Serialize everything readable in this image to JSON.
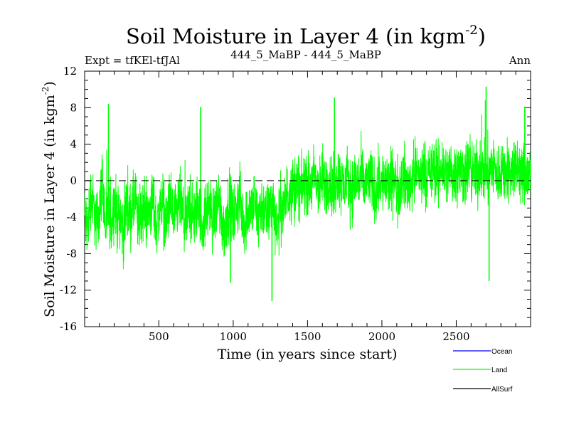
{
  "chart_data": {
    "type": "line",
    "title": "Soil Moisture in Layer 4 (in kgm",
    "title_sup": "-2",
    "title_close": ")",
    "subtitle_left": "Expt = tfKEl-tfJAl",
    "subtitle_center": "444_5_MaBP - 444_5_MaBP",
    "subtitle_right": "Ann",
    "xlabel": "Time (in years since start)",
    "ylabel": "Soil Moisture in Layer 4 (in kgm",
    "ylabel_sup": "-2",
    "ylabel_close": ")",
    "xlim": [
      1,
      3000
    ],
    "ylim": [
      -16,
      12
    ],
    "x_ticks": [
      500,
      1000,
      1500,
      2000,
      2500
    ],
    "x_tick_labels": [
      "500",
      "1000",
      "1500",
      "2000",
      "2500"
    ],
    "y_ticks": [
      -16,
      -12,
      -8,
      -4,
      0,
      4,
      8,
      12
    ],
    "y_tick_labels": [
      "-16",
      "-12",
      "-8",
      "-4",
      "0",
      "4",
      "8",
      "12"
    ],
    "zero_line": true,
    "grid": false,
    "legend_position": "bottom-right",
    "series": [
      {
        "name": "Land",
        "color": "#00ff00",
        "x_start": 1,
        "x_step": 20,
        "values": [
          -3.8,
          -5.4,
          -1.6,
          -2.9,
          -4.8,
          -3.1,
          0.4,
          -5.5,
          -3.2,
          -4.9,
          -2.1,
          -4.2,
          -3.5,
          -6.1,
          -2.4,
          -4.0,
          -3.3,
          -1.9,
          -5.0,
          -3.6,
          -2.8,
          -4.3,
          -3.0,
          -2.2,
          -4.7,
          -3.9,
          -1.5,
          -5.2,
          -3.4,
          -2.6,
          -4.4,
          -3.7,
          -2.0,
          -4.1,
          -5.3,
          -2.7,
          -3.5,
          -4.6,
          -2.3,
          -3.8,
          -5.1,
          -3.0,
          -2.5,
          -4.5,
          -3.2,
          -1.8,
          -4.0,
          -5.6,
          -3.3,
          -2.4,
          -4.2,
          -3.1,
          -1.7,
          -3.9,
          -4.8,
          -2.9,
          -3.6,
          -2.0,
          -4.4,
          -3.0,
          -2.6,
          -4.1,
          -3.4,
          -2.2,
          -3.8,
          -4.9,
          -2.7,
          -3.3,
          -1.4,
          -1.0,
          -0.8,
          -0.3,
          -0.6,
          -1.2,
          0.2,
          -0.4,
          -0.9,
          0.5,
          -0.2,
          -1.1,
          0.3,
          -0.7,
          0.1,
          -0.5,
          -1.3,
          0.6,
          -0.1,
          -0.8,
          0.4,
          -0.6,
          -1.0,
          0.2,
          -0.3,
          0.7,
          -0.9,
          -0.2,
          0.3,
          -0.7,
          -1.4,
          0.5,
          -0.4,
          0.1,
          -0.6,
          -0.1,
          0.4,
          -1.2,
          -0.5,
          0.6,
          -0.2,
          -0.8,
          0.2,
          0.8,
          1.0,
          0.5,
          1.3,
          0.7,
          0.2,
          1.5,
          0.9,
          0.4,
          1.8,
          1.1,
          0.6,
          1.4,
          0.3,
          1.7,
          0.8,
          1.2,
          0.5,
          1.9,
          0.7,
          1.1,
          0.4,
          1.6,
          0.9,
          1.3,
          0.6,
          1.8,
          1.0,
          0.3,
          1.5,
          0.8,
          1.2,
          0.5,
          1.7,
          0.9,
          1.4,
          0.6
        ]
      },
      {
        "name": "Ocean",
        "color": "#0000ff",
        "values": []
      },
      {
        "name": "AllSurf",
        "color": "#000000",
        "values": []
      }
    ],
    "annotations": [
      {
        "x": 161,
        "value": 8.4
      },
      {
        "x": 781,
        "value": 8.1
      },
      {
        "x": 981,
        "value": -11.2
      },
      {
        "x": 1261,
        "value": -13.2
      },
      {
        "x": 1681,
        "value": 9.1
      },
      {
        "x": 2701,
        "value": 10.3
      },
      {
        "x": 2721,
        "value": -11.0
      },
      {
        "x": 2961,
        "value": 8.1
      }
    ]
  },
  "colors": {
    "land": "#00ff00",
    "ocean": "#0000ff",
    "allsurf": "#000000",
    "axis": "#000000",
    "background": "#ffffff"
  }
}
